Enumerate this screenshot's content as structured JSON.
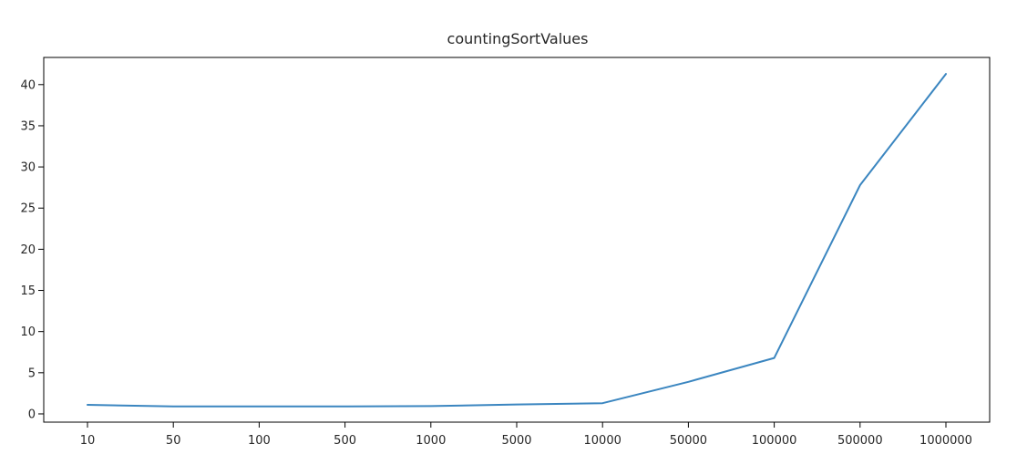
{
  "chart_data": {
    "type": "line",
    "title": "countingSortValues",
    "xlabel": "",
    "ylabel": "",
    "categories": [
      "10",
      "50",
      "100",
      "500",
      "1000",
      "5000",
      "10000",
      "50000",
      "100000",
      "500000",
      "1000000"
    ],
    "series": [
      {
        "values": [
          1.1,
          0.9,
          0.9,
          0.92,
          0.95,
          1.15,
          1.3,
          3.9,
          6.8,
          27.8,
          41.3
        ],
        "color": "#3b86c0"
      }
    ],
    "ylim": [
      -1.0,
      43.3
    ],
    "yticks": [
      0,
      5,
      10,
      15,
      20,
      25,
      30,
      35,
      40
    ],
    "grid": false,
    "legend": "none"
  }
}
